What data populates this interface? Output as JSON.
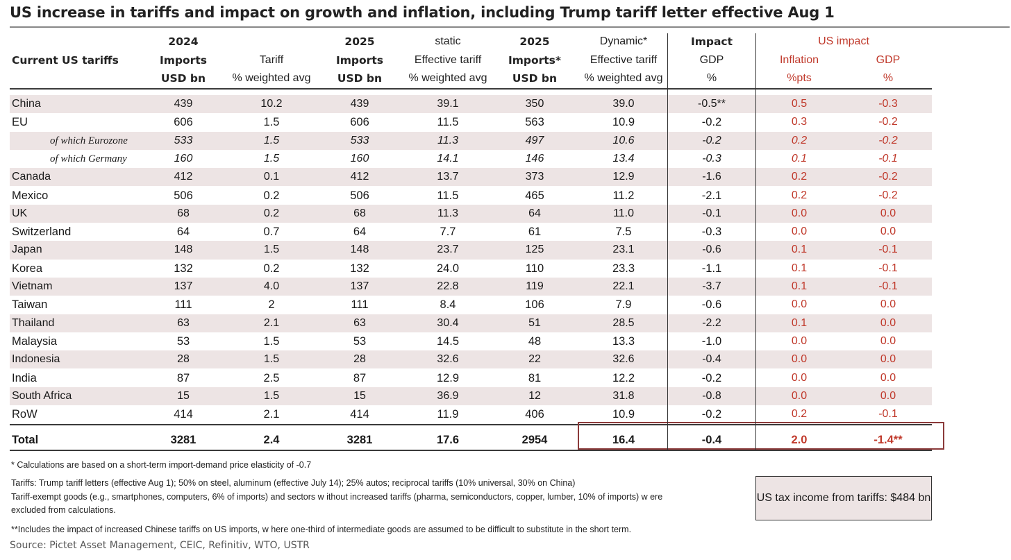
{
  "title": "US increase in tariffs and impact on growth and inflation, including Trump tariff letter effective Aug 1",
  "header": {
    "col0": [
      "",
      "Current US tariffs",
      ""
    ],
    "col1": [
      "2024",
      "Imports",
      "USD bn"
    ],
    "col2": [
      "",
      "Tariff",
      "% weighted avg"
    ],
    "col3": [
      "2025",
      "Imports",
      "USD bn"
    ],
    "col4": [
      "static",
      "Effective tariff",
      "% weighted avg"
    ],
    "col5": [
      "2025",
      "Imports*",
      "USD bn"
    ],
    "col6": [
      "Dynamic*",
      "Effective tariff",
      "% weighted avg"
    ],
    "col7": [
      "Impact",
      "GDP",
      "%"
    ],
    "us_impact": "US impact",
    "col8": [
      "Inflation",
      "%pts"
    ],
    "col9": [
      "GDP",
      "%"
    ]
  },
  "rows": [
    {
      "name": "China",
      "imp2024": "439",
      "tariff": "10.2",
      "imp2025": "439",
      "static": "39.1",
      "imp2025d": "350",
      "dynamic": "39.0",
      "gdp_impact": "-0.5**",
      "inflation": "0.5",
      "us_gdp": "-0.3"
    },
    {
      "name": "EU",
      "imp2024": "606",
      "tariff": "1.5",
      "imp2025": "606",
      "static": "11.5",
      "imp2025d": "563",
      "dynamic": "10.9",
      "gdp_impact": "-0.2",
      "inflation": "0.3",
      "us_gdp": "-0.2"
    },
    {
      "name": "of which Eurozone",
      "imp2024": "533",
      "tariff": "1.5",
      "imp2025": "533",
      "static": "11.3",
      "imp2025d": "497",
      "dynamic": "10.6",
      "gdp_impact": "-0.2",
      "inflation": "0.2",
      "us_gdp": "-0.2"
    },
    {
      "name": "of which Germany",
      "imp2024": "160",
      "tariff": "1.5",
      "imp2025": "160",
      "static": "14.1",
      "imp2025d": "146",
      "dynamic": "13.4",
      "gdp_impact": "-0.3",
      "inflation": "0.1",
      "us_gdp": "-0.1"
    },
    {
      "name": "Canada",
      "imp2024": "412",
      "tariff": "0.1",
      "imp2025": "412",
      "static": "13.7",
      "imp2025d": "373",
      "dynamic": "12.9",
      "gdp_impact": "-1.6",
      "inflation": "0.2",
      "us_gdp": "-0.2"
    },
    {
      "name": "Mexico",
      "imp2024": "506",
      "tariff": "0.2",
      "imp2025": "506",
      "static": "11.5",
      "imp2025d": "465",
      "dynamic": "11.2",
      "gdp_impact": "-2.1",
      "inflation": "0.2",
      "us_gdp": "-0.2"
    },
    {
      "name": "UK",
      "imp2024": "68",
      "tariff": "0.2",
      "imp2025": "68",
      "static": "11.3",
      "imp2025d": "64",
      "dynamic": "11.0",
      "gdp_impact": "-0.1",
      "inflation": "0.0",
      "us_gdp": "0.0"
    },
    {
      "name": "Switzerland",
      "imp2024": "64",
      "tariff": "0.7",
      "imp2025": "64",
      "static": "7.7",
      "imp2025d": "61",
      "dynamic": "7.5",
      "gdp_impact": "-0.3",
      "inflation": "0.0",
      "us_gdp": "0.0"
    },
    {
      "name": "Japan",
      "imp2024": "148",
      "tariff": "1.5",
      "imp2025": "148",
      "static": "23.7",
      "imp2025d": "125",
      "dynamic": "23.1",
      "gdp_impact": "-0.6",
      "inflation": "0.1",
      "us_gdp": "-0.1"
    },
    {
      "name": "Korea",
      "imp2024": "132",
      "tariff": "0.2",
      "imp2025": "132",
      "static": "24.0",
      "imp2025d": "110",
      "dynamic": "23.3",
      "gdp_impact": "-1.1",
      "inflation": "0.1",
      "us_gdp": "-0.1"
    },
    {
      "name": "Vietnam",
      "imp2024": "137",
      "tariff": "4.0",
      "imp2025": "137",
      "static": "22.8",
      "imp2025d": "119",
      "dynamic": "22.1",
      "gdp_impact": "-3.7",
      "inflation": "0.1",
      "us_gdp": "-0.1"
    },
    {
      "name": "Taiwan",
      "imp2024": "111",
      "tariff": "2",
      "imp2025": "111",
      "static": "8.4",
      "imp2025d": "106",
      "dynamic": "7.9",
      "gdp_impact": "-0.6",
      "inflation": "0.0",
      "us_gdp": "0.0"
    },
    {
      "name": "Thailand",
      "imp2024": "63",
      "tariff": "2.1",
      "imp2025": "63",
      "static": "30.4",
      "imp2025d": "51",
      "dynamic": "28.5",
      "gdp_impact": "-2.2",
      "inflation": "0.1",
      "us_gdp": "0.0"
    },
    {
      "name": "Malaysia",
      "imp2024": "53",
      "tariff": "1.5",
      "imp2025": "53",
      "static": "14.5",
      "imp2025d": "48",
      "dynamic": "13.3",
      "gdp_impact": "-1.0",
      "inflation": "0.0",
      "us_gdp": "0.0"
    },
    {
      "name": "Indonesia",
      "imp2024": "28",
      "tariff": "1.5",
      "imp2025": "28",
      "static": "32.6",
      "imp2025d": "22",
      "dynamic": "32.6",
      "gdp_impact": "-0.4",
      "inflation": "0.0",
      "us_gdp": "0.0"
    },
    {
      "name": "India",
      "imp2024": "87",
      "tariff": "2.5",
      "imp2025": "87",
      "static": "12.9",
      "imp2025d": "81",
      "dynamic": "12.2",
      "gdp_impact": "-0.2",
      "inflation": "0.0",
      "us_gdp": "0.0"
    },
    {
      "name": "South Africa",
      "imp2024": "15",
      "tariff": "1.5",
      "imp2025": "15",
      "static": "36.9",
      "imp2025d": "12",
      "dynamic": "31.8",
      "gdp_impact": "-0.8",
      "inflation": "0.0",
      "us_gdp": "0.0"
    },
    {
      "name": "RoW",
      "imp2024": "414",
      "tariff": "2.1",
      "imp2025": "414",
      "static": "11.9",
      "imp2025d": "406",
      "dynamic": "10.9",
      "gdp_impact": "-0.2",
      "inflation": "0.2",
      "us_gdp": "-0.1"
    }
  ],
  "total": {
    "name": "Total",
    "imp2024": "3281",
    "tariff": "2.4",
    "imp2025": "3281",
    "static": "17.6",
    "imp2025d": "2954",
    "dynamic": "16.4",
    "gdp_impact": "-0.4",
    "inflation": "2.0",
    "us_gdp": "-1.4**"
  },
  "notes": {
    "elasticity": "* Calculations are based on a short-term import-demand price elasticity of -0.7",
    "tariffs_line1": "Tariffs: Trump tariff letters (effective Aug 1); 50% on steel, aluminum (effective July 14); 25% autos; reciprocal tariffs (10% universal, 30% on China)",
    "tariffs_line2": "Tariff-exempt goods (e.g., smartphones, computers, 6% of imports)  and sectors w ithout increased tariffs (pharma, semiconductors, copper, lumber, 10% of imports) w ere",
    "tariffs_line3": "excluded from calculations.",
    "china_note": "**Includes the impact of increased Chinese tariffs on US imports, w here one-third of intermediate goods are assumed to be difficult to substitute in the short term."
  },
  "tax_box": "US tax income from tariffs: $484 bn",
  "source": "Source: Pictet Asset Management, CEIC, Refinitiv, WTO, USTR",
  "colors": {
    "accent_red": "#c0392b",
    "shade": "#ede4e4",
    "box_border": "#8b3a3a"
  }
}
